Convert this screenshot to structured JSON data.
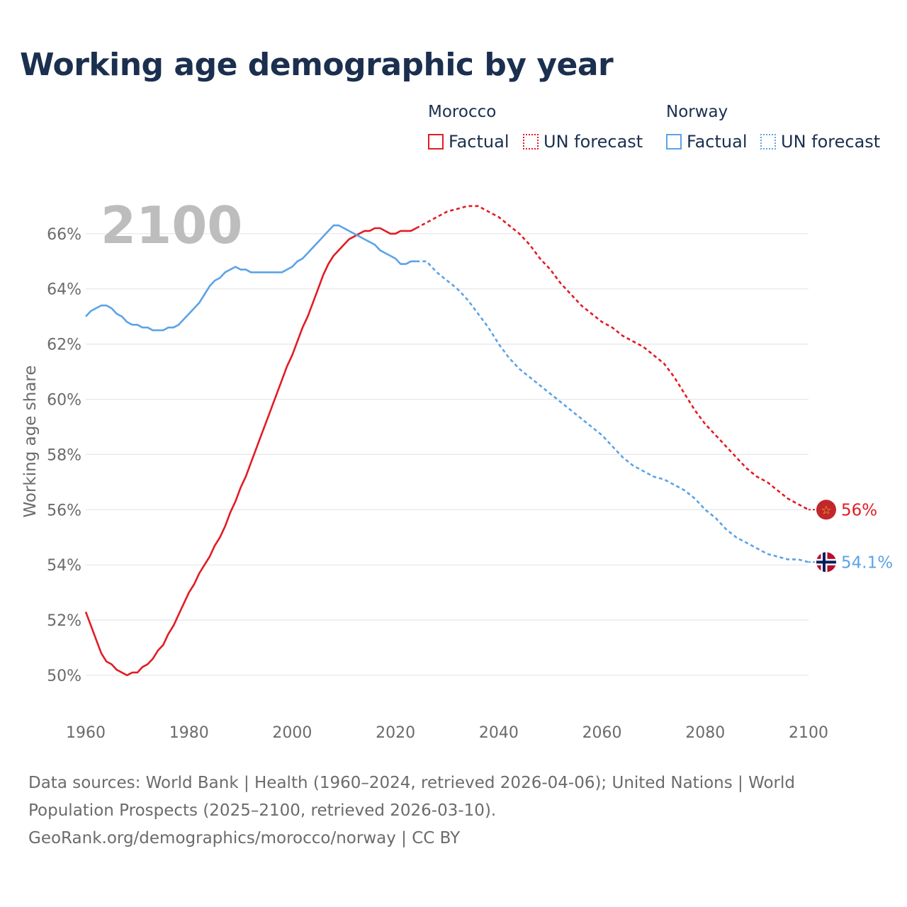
{
  "title": "Working age demographic by year",
  "legend": {
    "groups": [
      {
        "name": "Morocco",
        "color": "#e31b23",
        "factual_label": "Factual",
        "forecast_label": "UN forecast"
      },
      {
        "name": "Norway",
        "color": "#5ca3e6",
        "factual_label": "Factual",
        "forecast_label": "UN forecast"
      }
    ]
  },
  "sources": {
    "line1": "Data sources: World Bank | Health (1960–2024, retrieved 2026-04-06); United Nations | World",
    "line2": "Population Prospects (2025–2100, retrieved 2026-03-10).",
    "line3": "GeoRank.org/demographics/morocco/norway | CC BY"
  },
  "chart_data": {
    "type": "line",
    "title": "Working age demographic by year",
    "year_watermark": "2100",
    "xlabel": "",
    "ylabel": "Working age share",
    "xlim": [
      1960,
      2100
    ],
    "ylim": [
      49,
      68
    ],
    "x_ticks": [
      1960,
      1980,
      2000,
      2020,
      2040,
      2060,
      2080,
      2100
    ],
    "y_ticks": [
      50,
      52,
      54,
      56,
      58,
      60,
      62,
      64,
      66
    ],
    "y_tick_labels": [
      "50%",
      "52%",
      "54%",
      "56%",
      "58%",
      "60%",
      "62%",
      "64%",
      "66%"
    ],
    "grid": true,
    "series": [
      {
        "name": "Morocco",
        "color": "#e31b23",
        "end_label": "56%",
        "factual_range": [
          1960,
          2024
        ],
        "forecast_range": [
          2024,
          2100
        ],
        "points": [
          [
            1960,
            52.3
          ],
          [
            1962,
            51.3
          ],
          [
            1963,
            50.8
          ],
          [
            1964,
            50.5
          ],
          [
            1965,
            50.4
          ],
          [
            1966,
            50.2
          ],
          [
            1968,
            50.0
          ],
          [
            1969,
            50.1
          ],
          [
            1970,
            50.1
          ],
          [
            1971,
            50.3
          ],
          [
            1972,
            50.4
          ],
          [
            1973,
            50.6
          ],
          [
            1974,
            50.9
          ],
          [
            1975,
            51.1
          ],
          [
            1976,
            51.5
          ],
          [
            1977,
            51.8
          ],
          [
            1978,
            52.2
          ],
          [
            1979,
            52.6
          ],
          [
            1980,
            53.0
          ],
          [
            1981,
            53.3
          ],
          [
            1982,
            53.7
          ],
          [
            1983,
            54.0
          ],
          [
            1984,
            54.3
          ],
          [
            1985,
            54.7
          ],
          [
            1986,
            55.0
          ],
          [
            1987,
            55.4
          ],
          [
            1988,
            55.9
          ],
          [
            1989,
            56.3
          ],
          [
            1990,
            56.8
          ],
          [
            1991,
            57.2
          ],
          [
            1992,
            57.7
          ],
          [
            1993,
            58.2
          ],
          [
            1994,
            58.7
          ],
          [
            1995,
            59.2
          ],
          [
            1996,
            59.7
          ],
          [
            1997,
            60.2
          ],
          [
            1998,
            60.7
          ],
          [
            1999,
            61.2
          ],
          [
            2000,
            61.6
          ],
          [
            2001,
            62.1
          ],
          [
            2002,
            62.6
          ],
          [
            2003,
            63.0
          ],
          [
            2004,
            63.5
          ],
          [
            2005,
            64.0
          ],
          [
            2006,
            64.5
          ],
          [
            2007,
            64.9
          ],
          [
            2008,
            65.2
          ],
          [
            2009,
            65.4
          ],
          [
            2010,
            65.6
          ],
          [
            2011,
            65.8
          ],
          [
            2012,
            65.9
          ],
          [
            2013,
            66.0
          ],
          [
            2014,
            66.1
          ],
          [
            2015,
            66.1
          ],
          [
            2016,
            66.2
          ],
          [
            2017,
            66.2
          ],
          [
            2018,
            66.1
          ],
          [
            2019,
            66.0
          ],
          [
            2020,
            66.0
          ],
          [
            2021,
            66.1
          ],
          [
            2022,
            66.1
          ],
          [
            2023,
            66.1
          ],
          [
            2024,
            66.2
          ],
          [
            2026,
            66.4
          ],
          [
            2028,
            66.6
          ],
          [
            2030,
            66.8
          ],
          [
            2032,
            66.9
          ],
          [
            2034,
            67.0
          ],
          [
            2036,
            67.0
          ],
          [
            2038,
            66.8
          ],
          [
            2040,
            66.6
          ],
          [
            2042,
            66.3
          ],
          [
            2044,
            66.0
          ],
          [
            2046,
            65.6
          ],
          [
            2048,
            65.1
          ],
          [
            2050,
            64.7
          ],
          [
            2052,
            64.2
          ],
          [
            2054,
            63.8
          ],
          [
            2056,
            63.4
          ],
          [
            2058,
            63.1
          ],
          [
            2060,
            62.8
          ],
          [
            2062,
            62.6
          ],
          [
            2064,
            62.3
          ],
          [
            2066,
            62.1
          ],
          [
            2068,
            61.9
          ],
          [
            2070,
            61.6
          ],
          [
            2072,
            61.3
          ],
          [
            2074,
            60.8
          ],
          [
            2076,
            60.2
          ],
          [
            2078,
            59.6
          ],
          [
            2080,
            59.1
          ],
          [
            2082,
            58.7
          ],
          [
            2084,
            58.3
          ],
          [
            2086,
            57.9
          ],
          [
            2088,
            57.5
          ],
          [
            2090,
            57.2
          ],
          [
            2092,
            57.0
          ],
          [
            2094,
            56.7
          ],
          [
            2096,
            56.4
          ],
          [
            2098,
            56.2
          ],
          [
            2100,
            56.0
          ]
        ]
      },
      {
        "name": "Norway",
        "color": "#5ca3e6",
        "end_label": "54.1%",
        "factual_range": [
          1960,
          2024
        ],
        "forecast_range": [
          2024,
          2100
        ],
        "points": [
          [
            1960,
            63.0
          ],
          [
            1961,
            63.2
          ],
          [
            1962,
            63.3
          ],
          [
            1963,
            63.4
          ],
          [
            1964,
            63.4
          ],
          [
            1965,
            63.3
          ],
          [
            1966,
            63.1
          ],
          [
            1967,
            63.0
          ],
          [
            1968,
            62.8
          ],
          [
            1969,
            62.7
          ],
          [
            1970,
            62.7
          ],
          [
            1971,
            62.6
          ],
          [
            1972,
            62.6
          ],
          [
            1973,
            62.5
          ],
          [
            1974,
            62.5
          ],
          [
            1975,
            62.5
          ],
          [
            1976,
            62.6
          ],
          [
            1977,
            62.6
          ],
          [
            1978,
            62.7
          ],
          [
            1979,
            62.9
          ],
          [
            1980,
            63.1
          ],
          [
            1981,
            63.3
          ],
          [
            1982,
            63.5
          ],
          [
            1983,
            63.8
          ],
          [
            1984,
            64.1
          ],
          [
            1985,
            64.3
          ],
          [
            1986,
            64.4
          ],
          [
            1987,
            64.6
          ],
          [
            1988,
            64.7
          ],
          [
            1989,
            64.8
          ],
          [
            1990,
            64.7
          ],
          [
            1991,
            64.7
          ],
          [
            1992,
            64.6
          ],
          [
            1993,
            64.6
          ],
          [
            1994,
            64.6
          ],
          [
            1995,
            64.6
          ],
          [
            1996,
            64.6
          ],
          [
            1997,
            64.6
          ],
          [
            1998,
            64.6
          ],
          [
            1999,
            64.7
          ],
          [
            2000,
            64.8
          ],
          [
            2001,
            65.0
          ],
          [
            2002,
            65.1
          ],
          [
            2003,
            65.3
          ],
          [
            2004,
            65.5
          ],
          [
            2005,
            65.7
          ],
          [
            2006,
            65.9
          ],
          [
            2007,
            66.1
          ],
          [
            2008,
            66.3
          ],
          [
            2009,
            66.3
          ],
          [
            2010,
            66.2
          ],
          [
            2011,
            66.1
          ],
          [
            2012,
            66.0
          ],
          [
            2013,
            65.9
          ],
          [
            2014,
            65.8
          ],
          [
            2015,
            65.7
          ],
          [
            2016,
            65.6
          ],
          [
            2017,
            65.4
          ],
          [
            2018,
            65.3
          ],
          [
            2019,
            65.2
          ],
          [
            2020,
            65.1
          ],
          [
            2021,
            64.9
          ],
          [
            2022,
            64.9
          ],
          [
            2023,
            65.0
          ],
          [
            2024,
            65.0
          ],
          [
            2026,
            65.0
          ],
          [
            2028,
            64.6
          ],
          [
            2030,
            64.3
          ],
          [
            2032,
            64.0
          ],
          [
            2034,
            63.6
          ],
          [
            2036,
            63.1
          ],
          [
            2038,
            62.6
          ],
          [
            2040,
            62.0
          ],
          [
            2042,
            61.5
          ],
          [
            2044,
            61.1
          ],
          [
            2046,
            60.8
          ],
          [
            2048,
            60.5
          ],
          [
            2050,
            60.2
          ],
          [
            2052,
            59.9
          ],
          [
            2054,
            59.6
          ],
          [
            2056,
            59.3
          ],
          [
            2058,
            59.0
          ],
          [
            2060,
            58.7
          ],
          [
            2062,
            58.3
          ],
          [
            2064,
            57.9
          ],
          [
            2066,
            57.6
          ],
          [
            2068,
            57.4
          ],
          [
            2070,
            57.2
          ],
          [
            2072,
            57.1
          ],
          [
            2074,
            56.9
          ],
          [
            2076,
            56.7
          ],
          [
            2078,
            56.4
          ],
          [
            2080,
            56.0
          ],
          [
            2082,
            55.7
          ],
          [
            2084,
            55.3
          ],
          [
            2086,
            55.0
          ],
          [
            2088,
            54.8
          ],
          [
            2090,
            54.6
          ],
          [
            2092,
            54.4
          ],
          [
            2094,
            54.3
          ],
          [
            2096,
            54.2
          ],
          [
            2098,
            54.2
          ],
          [
            2100,
            54.1
          ]
        ]
      }
    ]
  }
}
